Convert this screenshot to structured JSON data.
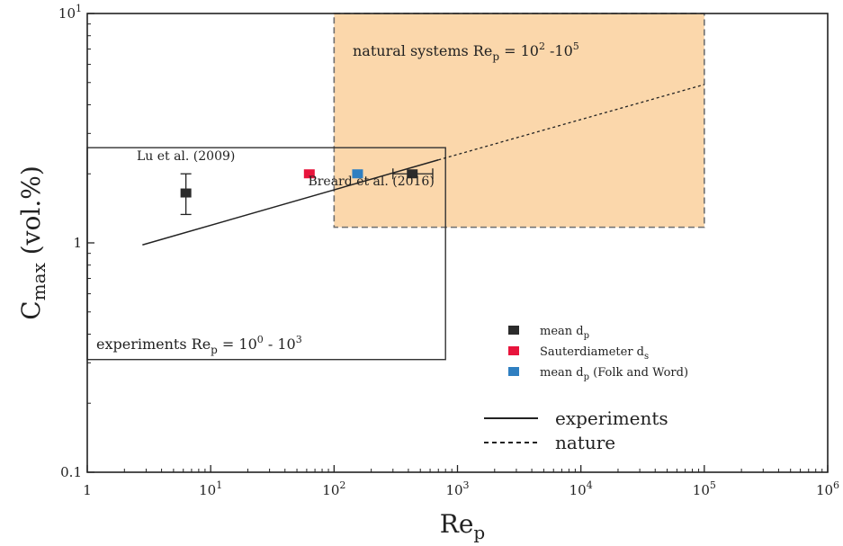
{
  "chart_data": {
    "type": "scatter",
    "x_scale": "log",
    "y_scale": "log",
    "xlim": [
      1,
      1000000
    ],
    "ylim": [
      0.1,
      10
    ],
    "xlabel": {
      "base": "Re",
      "sub": "p"
    },
    "ylabel": {
      "base": "C",
      "sub": "max",
      "tail": " (vol.%)"
    },
    "x_ticks": [
      {
        "value": 1,
        "base": "1",
        "exp": ""
      },
      {
        "value": 10,
        "base": "10",
        "exp": "1"
      },
      {
        "value": 100,
        "base": "10",
        "exp": "2"
      },
      {
        "value": 1000,
        "base": "10",
        "exp": "3"
      },
      {
        "value": 10000,
        "base": "10",
        "exp": "4"
      },
      {
        "value": 100000,
        "base": "10",
        "exp": "5"
      },
      {
        "value": 1000000,
        "base": "10",
        "exp": "6"
      }
    ],
    "y_ticks": [
      {
        "value": 0.1,
        "base": "0.1",
        "exp": ""
      },
      {
        "value": 1,
        "base": "1",
        "exp": ""
      },
      {
        "value": 10,
        "base": "10",
        "exp": "1"
      }
    ],
    "regions": [
      {
        "name": "natural systems",
        "x": [
          100,
          100000
        ],
        "y": [
          1.17,
          10
        ],
        "fill": "#fbd7ab",
        "stroke": "#6e6e6e",
        "dashed": true,
        "label": {
          "text": "natural systems  Re",
          "sub": "p",
          "mid": " = 10",
          "sup1": "2",
          "dash": " -10",
          "sup2": "5"
        }
      },
      {
        "name": "experiments",
        "x": [
          1,
          800
        ],
        "y": [
          0.31,
          2.6
        ],
        "fill": "none",
        "stroke": "#333333",
        "dashed": false,
        "label": {
          "text": "experiments  Re",
          "sub": "p",
          "mid": " = 10",
          "sup1": "0",
          "dash": " - 10",
          "sup2": "3"
        }
      }
    ],
    "lines": [
      {
        "name": "experiments",
        "style": "solid",
        "x": [
          2.8,
          700
        ],
        "y": [
          0.98,
          2.3
        ]
      },
      {
        "name": "nature",
        "style": "dashed",
        "x": [
          700,
          100000
        ],
        "y": [
          2.3,
          4.9
        ]
      }
    ],
    "points": [
      {
        "name": "lu-point",
        "x": 6.3,
        "y": 1.65,
        "y_err": [
          1.33,
          2.0
        ],
        "color": "#2b2b2b"
      },
      {
        "name": "sauter-point",
        "x": 63,
        "y": 2.0,
        "color": "#e8143c"
      },
      {
        "name": "folk-word-point",
        "x": 155,
        "y": 2.0,
        "color": "#2f7fc1"
      },
      {
        "name": "breard-point",
        "x": 430,
        "y": 2.0,
        "x_err": [
          300,
          630
        ],
        "color": "#2b2b2b"
      }
    ],
    "annotations": [
      {
        "name": "lu-label",
        "text": "Lu et al. (2009)",
        "x": 6.3,
        "y": 2.3
      },
      {
        "name": "breard-label",
        "text": "Breard et al. (2016)",
        "x": 200,
        "y": 1.78
      }
    ],
    "legend": {
      "placement": "bottom-right",
      "markers": [
        {
          "color": "#2b2b2b",
          "text": "mean d",
          "sub": "p",
          "tail": ""
        },
        {
          "color": "#e8143c",
          "text": "Sauterdiameter d",
          "sub": "s",
          "tail": ""
        },
        {
          "color": "#2f7fc1",
          "text": "mean d",
          "sub": "p",
          "tail": "  (Folk and Word)"
        }
      ],
      "lines": [
        {
          "style": "solid",
          "text": "experiments"
        },
        {
          "style": "dashed",
          "text": "nature"
        }
      ]
    }
  }
}
